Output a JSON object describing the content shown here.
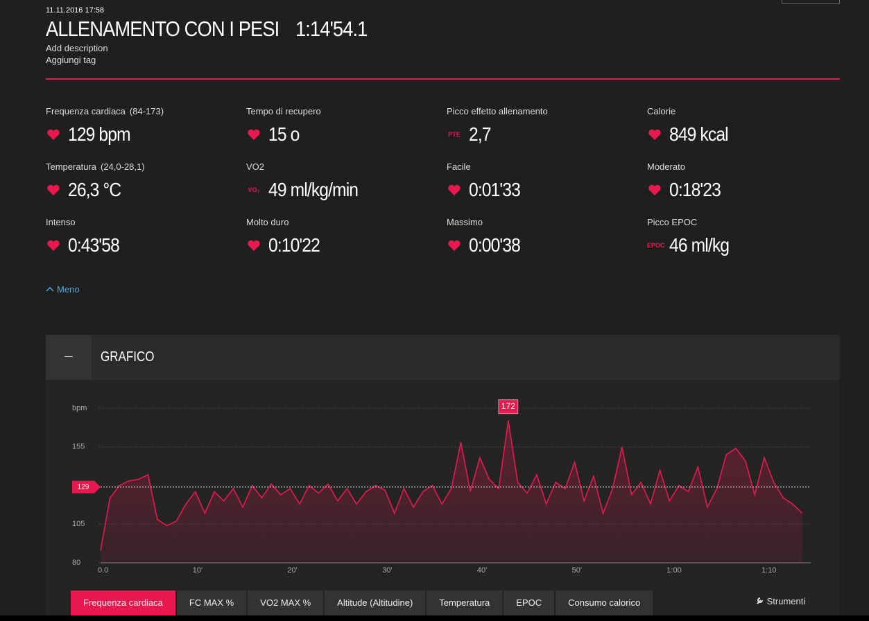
{
  "header": {
    "date": "11.11.2016 17:58",
    "title": "ALLENAMENTO CON I PESI",
    "duration": "1:14'54.1",
    "description": "Add description",
    "tag": "Aggiungi tag"
  },
  "stats": [
    {
      "label": "Frequenza cardiaca",
      "range": "(84-173)",
      "value": "129 bpm"
    },
    {
      "label": "Tempo di recupero",
      "value": "15 o"
    },
    {
      "label": "Picco effetto allenamento",
      "icon": "PTE",
      "value": "2,7"
    },
    {
      "label": "Calorie",
      "value": "849 kcal"
    },
    {
      "label": "Temperatura",
      "range": "(24,0-28,1)",
      "value": "26,3 °C"
    },
    {
      "label": "VO2",
      "icon": "VO₂",
      "value": "49 ml/kg/min"
    },
    {
      "label": "Facile",
      "value": "0:01'33"
    },
    {
      "label": "Moderato",
      "value": "0:18'23"
    },
    {
      "label": "Intenso",
      "value": "0:43'58"
    },
    {
      "label": "Molto duro",
      "value": "0:10'22"
    },
    {
      "label": "Massimo",
      "value": "0:00'38"
    },
    {
      "label": "Picco EPOC",
      "icon": "EPOC",
      "value": "46 ml/kg"
    }
  ],
  "toggle": "Meno",
  "panel": {
    "title": "GRAFICO",
    "tabs": [
      "Frequenza cardiaca",
      "FC MAX %",
      "VO2 MAX %",
      "Altitude (Altitudine)",
      "Temperatura",
      "EPOC",
      "Consumo calorico"
    ],
    "tools": "Strumenti"
  },
  "chart_data": {
    "type": "line",
    "color": "#e8194f",
    "x": [
      0,
      1,
      2,
      3,
      4,
      5,
      6,
      7,
      8,
      9,
      10,
      11,
      12,
      13,
      14,
      15,
      16,
      17,
      18,
      19,
      20,
      21,
      22,
      23,
      24,
      25,
      26,
      27,
      28,
      29,
      30,
      31,
      32,
      33,
      34,
      35,
      36,
      37,
      38,
      39,
      40,
      41,
      42,
      43,
      44,
      45,
      46,
      47,
      48,
      49,
      50,
      51,
      52,
      53,
      54,
      55,
      56,
      57,
      58,
      59,
      60,
      61,
      62,
      63,
      64,
      65,
      66,
      67,
      68,
      69,
      70,
      71,
      72,
      73,
      74
    ],
    "values": [
      88,
      122,
      130,
      133,
      134,
      137,
      108,
      104,
      107,
      118,
      126,
      112,
      126,
      120,
      128,
      116,
      130,
      122,
      131,
      124,
      128,
      118,
      130,
      125,
      131,
      120,
      128,
      118,
      126,
      130,
      127,
      112,
      128,
      116,
      126,
      130,
      118,
      128,
      158,
      126,
      148,
      134,
      128,
      172,
      132,
      125,
      137,
      118,
      132,
      128,
      145,
      120,
      136,
      112,
      128,
      155,
      124,
      132,
      118,
      140,
      120,
      130,
      126,
      142,
      116,
      128,
      150,
      154,
      146,
      124,
      148,
      132,
      122,
      118,
      112
    ],
    "xlim": [
      0,
      74.9
    ],
    "xticks": [
      {
        "value": 0,
        "label": "0.0"
      },
      {
        "value": 10,
        "label": "10'"
      },
      {
        "value": 20,
        "label": "20'"
      },
      {
        "value": 30,
        "label": "30'"
      },
      {
        "value": 40,
        "label": "40'"
      },
      {
        "value": 50,
        "label": "50'"
      },
      {
        "value": 60,
        "label": "1:00"
      },
      {
        "value": 70,
        "label": "1:10"
      }
    ],
    "ylim": [
      80,
      180
    ],
    "yticks": [
      80,
      105,
      155,
      {
        "value": 180,
        "label": "bpm"
      }
    ],
    "average": 129,
    "peak": 172,
    "peak_x": 43,
    "grid": true
  }
}
